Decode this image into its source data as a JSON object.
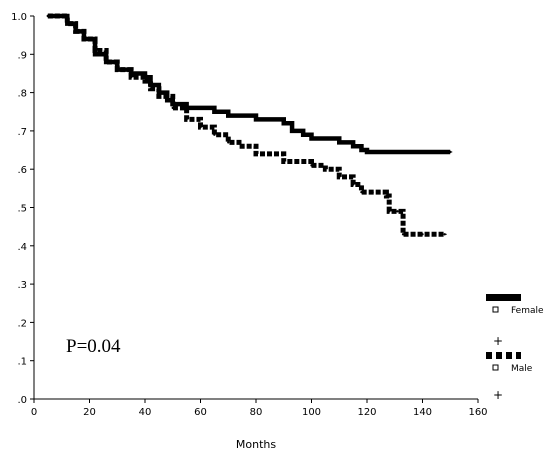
{
  "chart_data": {
    "type": "line",
    "xlabel": "Months",
    "ylabel": "",
    "title": "",
    "xlim": [
      0,
      160
    ],
    "ylim": [
      0,
      1.0
    ],
    "x_ticks": [
      "0",
      "20",
      "40",
      "60",
      "80",
      "100",
      "120",
      "140",
      "160"
    ],
    "y_ticks": [
      ".0",
      ".1",
      ".2",
      ".3",
      ".4",
      ".5",
      ".6",
      ".7",
      ".8",
      ".9",
      "1.0"
    ],
    "annotation": "P=0.04",
    "legend_position": "right",
    "legend_censor_symbol": "+",
    "series": [
      {
        "name": "Female",
        "style": "solid",
        "points": [
          [
            5,
            1.0
          ],
          [
            10,
            1.0
          ],
          [
            12,
            0.98
          ],
          [
            15,
            0.96
          ],
          [
            18,
            0.94
          ],
          [
            22,
            0.9
          ],
          [
            26,
            0.88
          ],
          [
            30,
            0.86
          ],
          [
            35,
            0.85
          ],
          [
            40,
            0.84
          ],
          [
            42,
            0.82
          ],
          [
            45,
            0.8
          ],
          [
            48,
            0.78
          ],
          [
            50,
            0.77
          ],
          [
            55,
            0.76
          ],
          [
            60,
            0.76
          ],
          [
            65,
            0.75
          ],
          [
            70,
            0.74
          ],
          [
            75,
            0.74
          ],
          [
            80,
            0.73
          ],
          [
            90,
            0.72
          ],
          [
            93,
            0.7
          ],
          [
            97,
            0.69
          ],
          [
            100,
            0.68
          ],
          [
            110,
            0.67
          ],
          [
            115,
            0.66
          ],
          [
            118,
            0.65
          ],
          [
            120,
            0.645
          ],
          [
            130,
            0.645
          ],
          [
            140,
            0.645
          ],
          [
            150,
            0.645
          ]
        ]
      },
      {
        "name": "Male",
        "style": "dashed",
        "points": [
          [
            5,
            1.0
          ],
          [
            10,
            1.0
          ],
          [
            12,
            0.98
          ],
          [
            15,
            0.96
          ],
          [
            18,
            0.94
          ],
          [
            22,
            0.91
          ],
          [
            26,
            0.88
          ],
          [
            30,
            0.86
          ],
          [
            35,
            0.84
          ],
          [
            40,
            0.83
          ],
          [
            42,
            0.81
          ],
          [
            45,
            0.79
          ],
          [
            50,
            0.76
          ],
          [
            55,
            0.73
          ],
          [
            60,
            0.71
          ],
          [
            65,
            0.69
          ],
          [
            70,
            0.67
          ],
          [
            75,
            0.66
          ],
          [
            80,
            0.64
          ],
          [
            90,
            0.62
          ],
          [
            100,
            0.61
          ],
          [
            105,
            0.6
          ],
          [
            110,
            0.58
          ],
          [
            115,
            0.56
          ],
          [
            118,
            0.54
          ],
          [
            122,
            0.54
          ],
          [
            127,
            0.53
          ],
          [
            128,
            0.49
          ],
          [
            131,
            0.49
          ],
          [
            133,
            0.43
          ],
          [
            140,
            0.43
          ],
          [
            148,
            0.43
          ]
        ]
      }
    ]
  },
  "colors": {
    "line": "#000000",
    "background": "#ffffff"
  }
}
